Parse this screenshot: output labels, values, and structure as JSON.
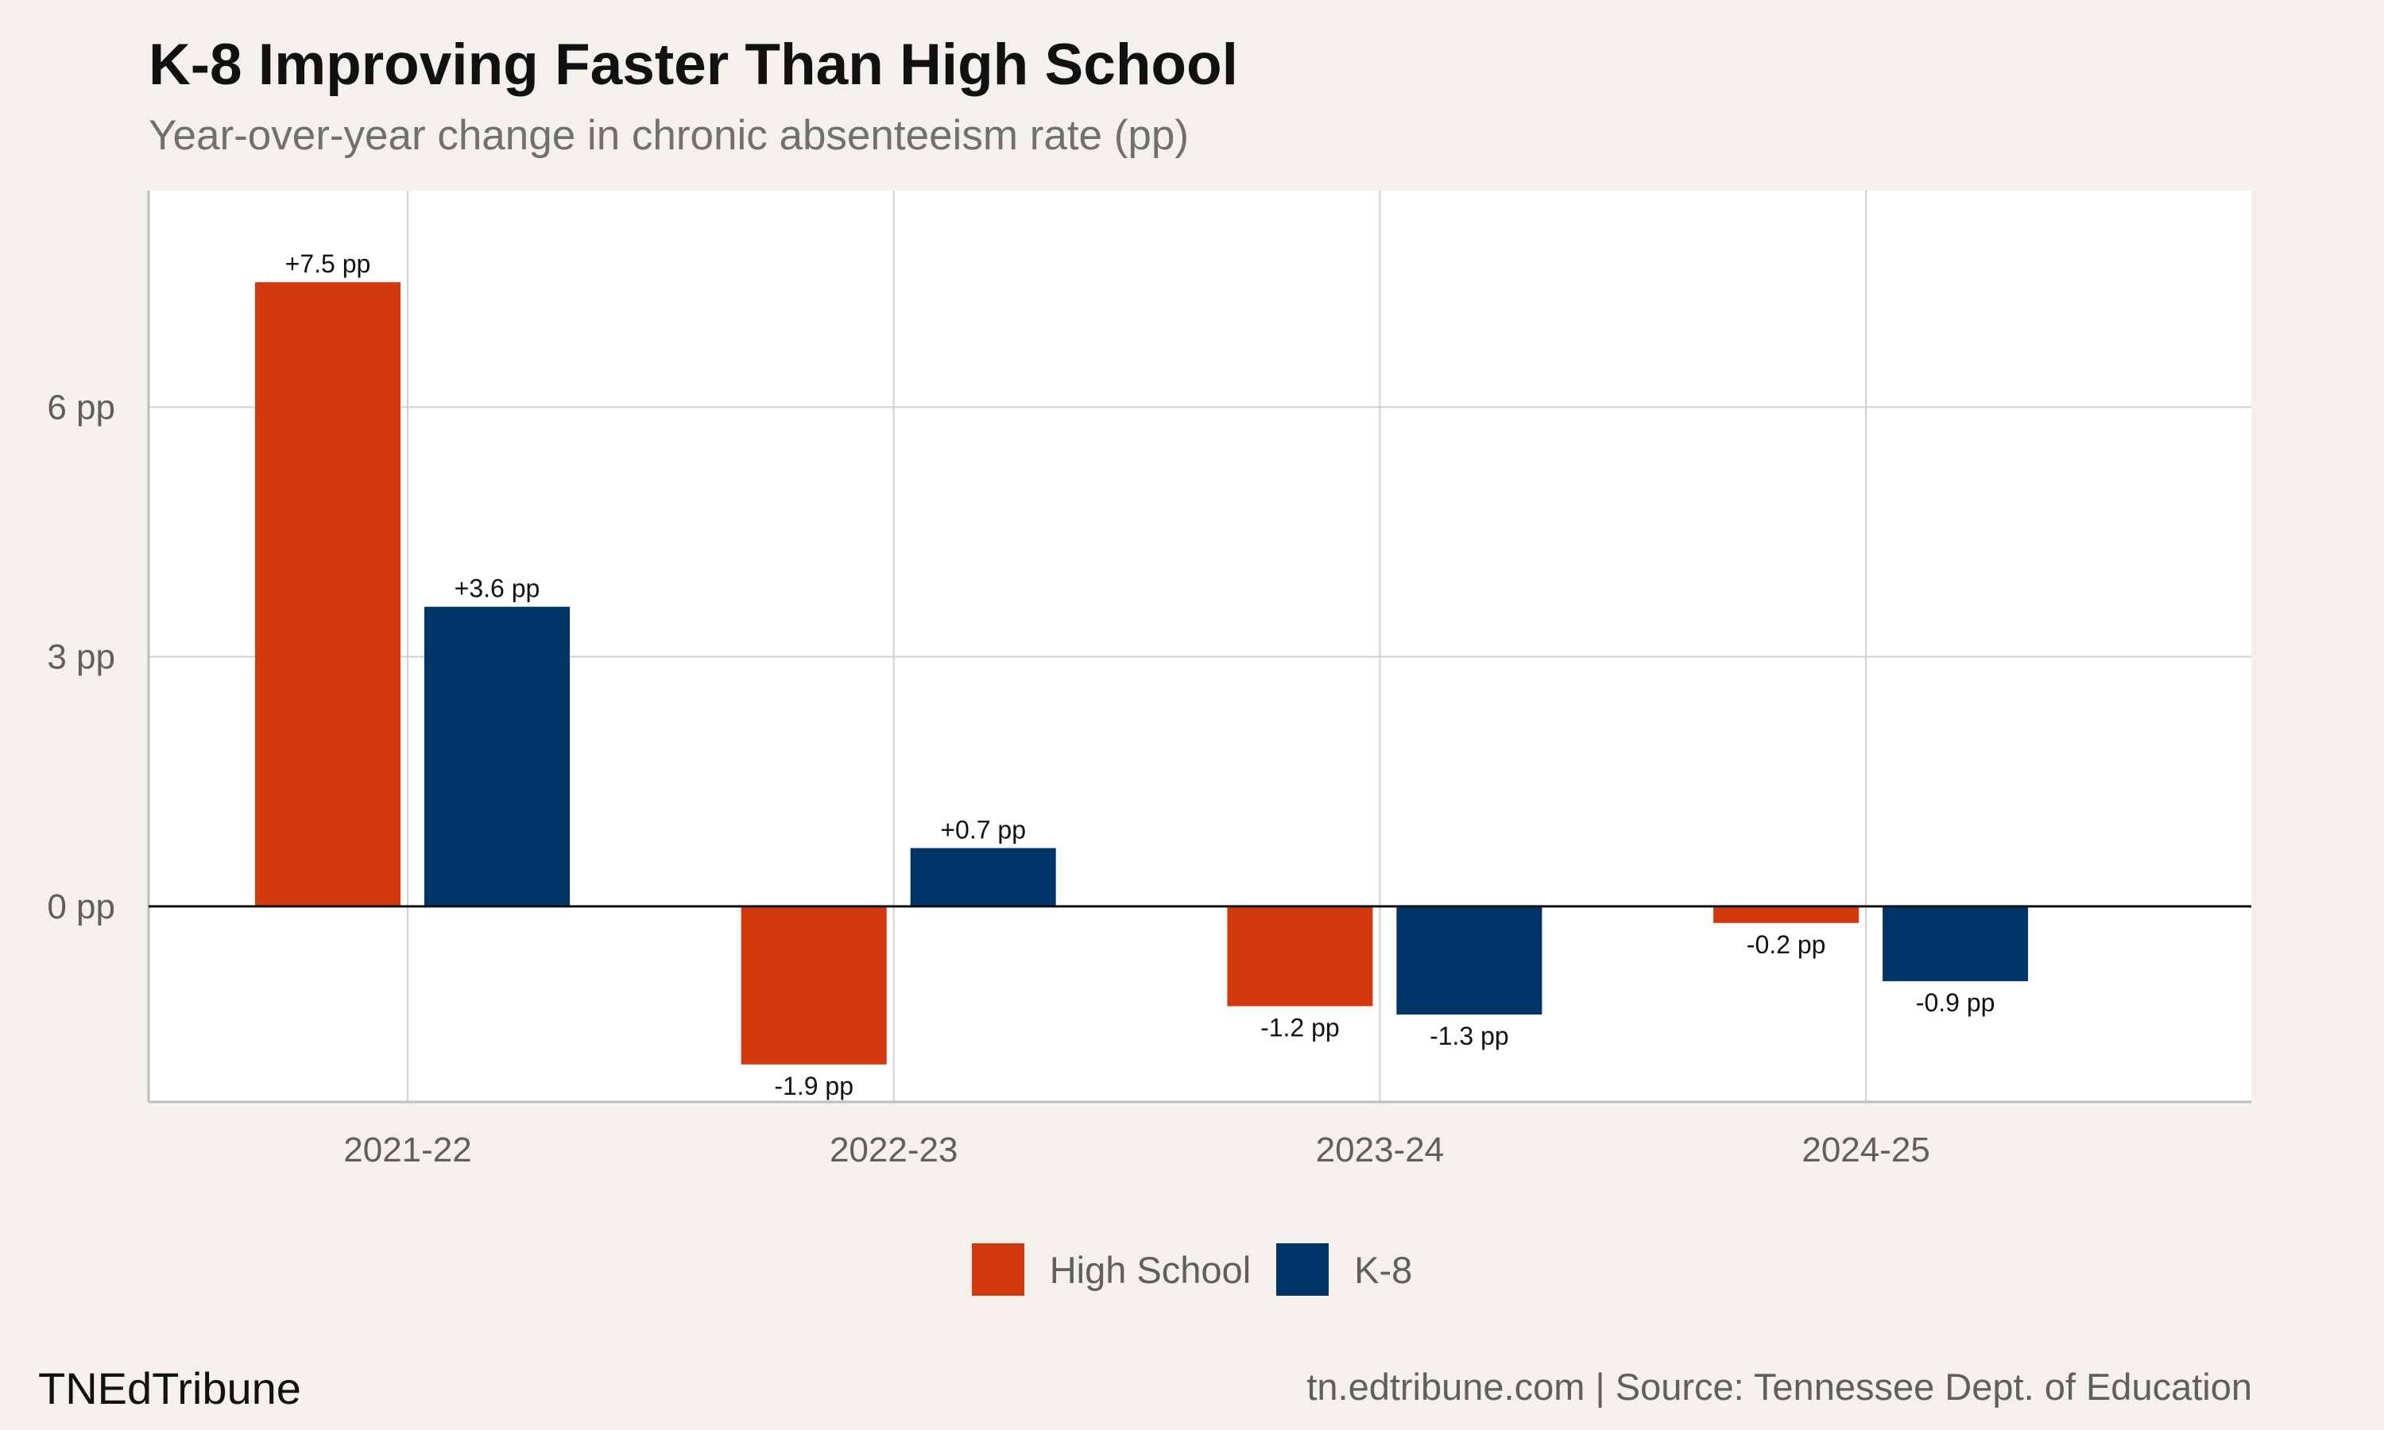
{
  "title": "K-8 Improving Faster Than High School",
  "subtitle": "Year-over-year change in chronic absenteeism rate (pp)",
  "brand": "TNEdTribune",
  "source": "tn.edtribune.com | Source: Tennessee Dept. of Education",
  "colors": {
    "high_school": "#d4390e",
    "k8": "#003366",
    "grid": "#cfcfcf",
    "panel": "#ffffff",
    "background": "#f4f1ec"
  },
  "chart_data": {
    "type": "bar",
    "categories": [
      "2021-22",
      "2022-23",
      "2023-24",
      "2024-25"
    ],
    "series": [
      {
        "name": "High School",
        "values": [
          7.5,
          -1.9,
          -1.2,
          -0.2
        ],
        "labels": [
          "+7.5 pp",
          "-1.9 pp",
          "-1.2 pp",
          "-0.2 pp"
        ]
      },
      {
        "name": "K-8",
        "values": [
          3.6,
          0.7,
          -1.3,
          -0.9
        ],
        "labels": [
          "+3.6 pp",
          "+0.7 pp",
          "-1.3 pp",
          "-0.9 pp"
        ]
      }
    ],
    "y_ticks": [
      0,
      3,
      6
    ],
    "y_tick_labels": [
      "0 pp",
      "3 pp",
      "6 pp"
    ],
    "ylim": [
      -2.35,
      8.6
    ],
    "grid": true,
    "legend_position": "bottom"
  }
}
